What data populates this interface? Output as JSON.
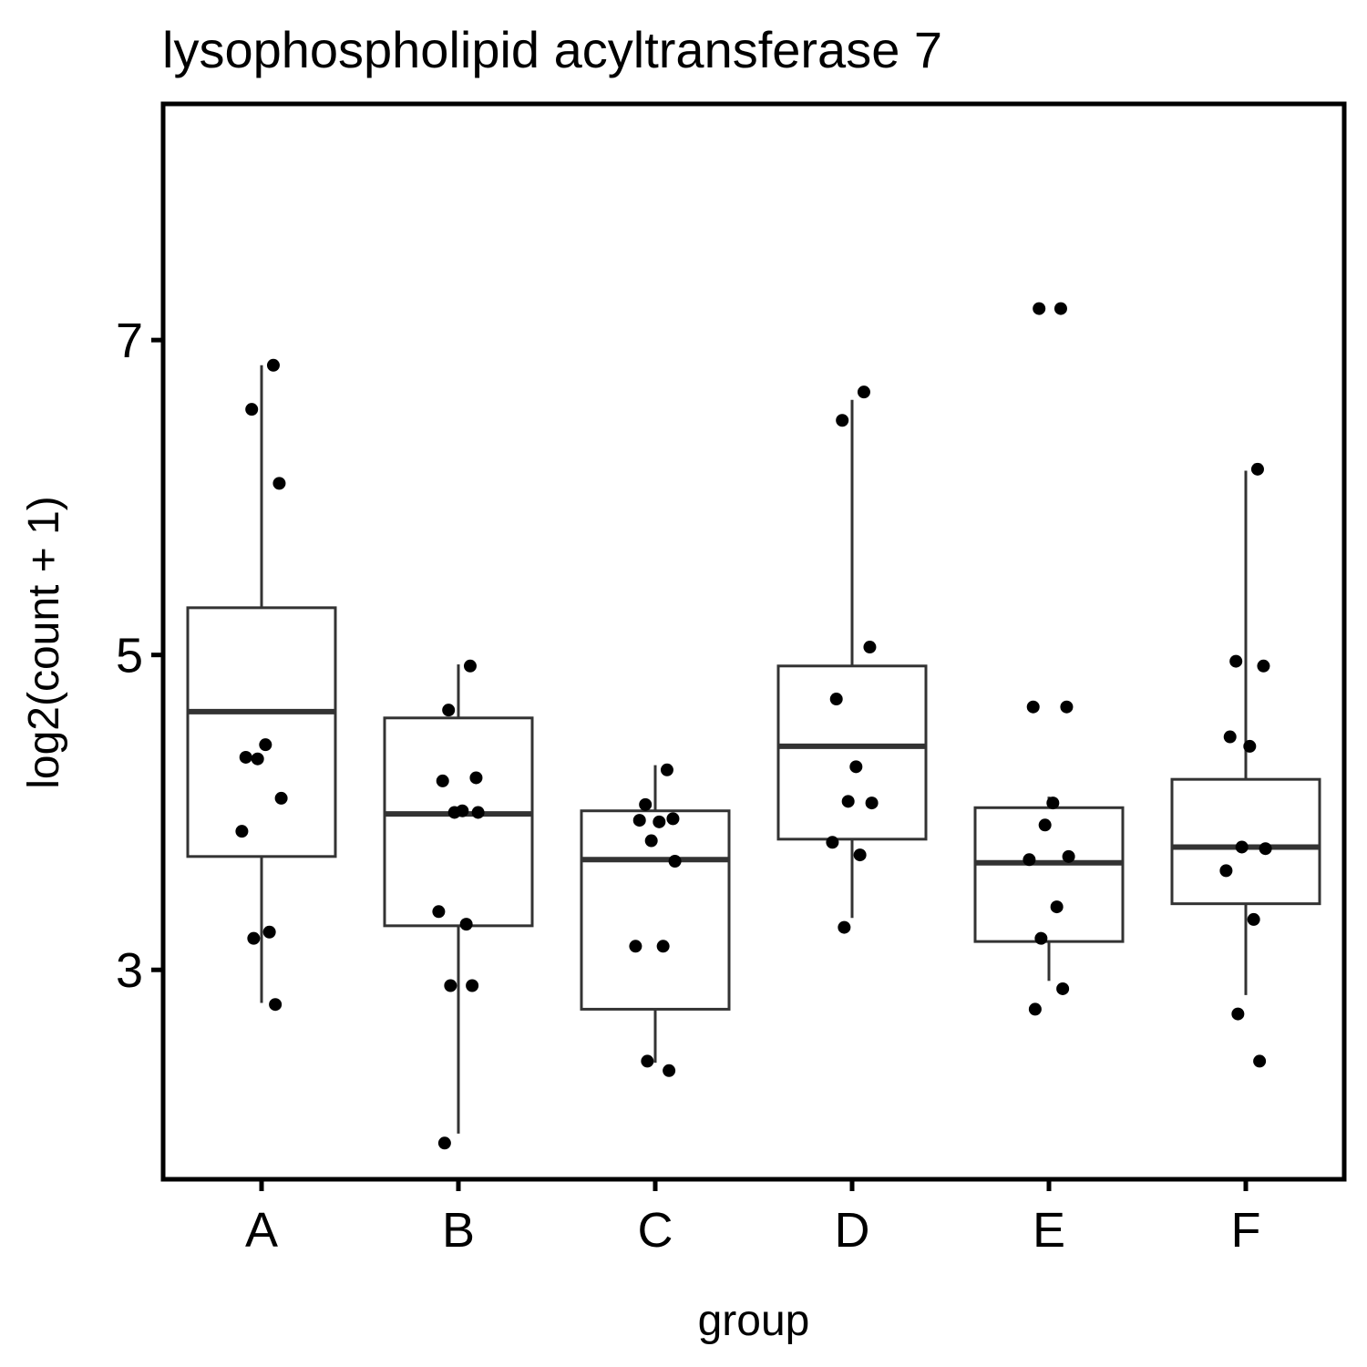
{
  "chart_data": {
    "type": "box",
    "title": "lysophospholipid acyltransferase 7",
    "xlabel": "group",
    "ylabel": "log2(count + 1)",
    "ylim": [
      1.67,
      8.5
    ],
    "y_ticks": [
      3,
      5,
      7
    ],
    "grid": false,
    "legend": "none",
    "categories": [
      "A",
      "B",
      "C",
      "D",
      "E",
      "F"
    ],
    "boxes": [
      {
        "group": "A",
        "q1": 3.72,
        "median": 4.64,
        "q3": 5.3,
        "whisker_low": 2.79,
        "whisker_high": 6.84
      },
      {
        "group": "B",
        "q1": 3.28,
        "median": 3.99,
        "q3": 4.6,
        "whisker_low": 1.96,
        "whisker_high": 4.94
      },
      {
        "group": "C",
        "q1": 2.75,
        "median": 3.7,
        "q3": 4.01,
        "whisker_low": 2.41,
        "whisker_high": 4.3
      },
      {
        "group": "D",
        "q1": 3.83,
        "median": 4.42,
        "q3": 4.93,
        "whisker_low": 3.33,
        "whisker_high": 6.62
      },
      {
        "group": "E",
        "q1": 3.18,
        "median": 3.68,
        "q3": 4.03,
        "whisker_low": 2.93,
        "whisker_high": 4.1
      },
      {
        "group": "F",
        "q1": 3.42,
        "median": 3.78,
        "q3": 4.21,
        "whisker_low": 2.84,
        "whisker_high": 6.17
      }
    ],
    "points": [
      {
        "group": "A",
        "values": [
          6.84,
          6.56,
          6.09,
          4.35,
          4.43,
          4.34,
          4.09,
          3.88,
          3.24,
          3.2,
          2.78
        ]
      },
      {
        "group": "B",
        "values": [
          4.93,
          4.65,
          4.22,
          4.2,
          4.01,
          4.0,
          4.0,
          3.37,
          3.29,
          2.9,
          2.9,
          1.9
        ]
      },
      {
        "group": "C",
        "values": [
          4.27,
          4.05,
          3.96,
          3.95,
          3.94,
          3.82,
          3.69,
          3.15,
          3.15,
          2.42,
          2.36
        ]
      },
      {
        "group": "D",
        "values": [
          6.67,
          6.49,
          5.05,
          4.72,
          4.29,
          4.07,
          4.06,
          3.81,
          3.73,
          3.27
        ]
      },
      {
        "group": "E",
        "values": [
          7.2,
          7.2,
          4.67,
          4.67,
          4.06,
          3.92,
          3.72,
          3.7,
          3.4,
          3.2,
          2.88,
          2.75
        ]
      },
      {
        "group": "F",
        "values": [
          6.18,
          4.96,
          4.93,
          4.48,
          4.42,
          3.78,
          3.77,
          3.63,
          3.32,
          2.72,
          2.42
        ]
      }
    ]
  }
}
